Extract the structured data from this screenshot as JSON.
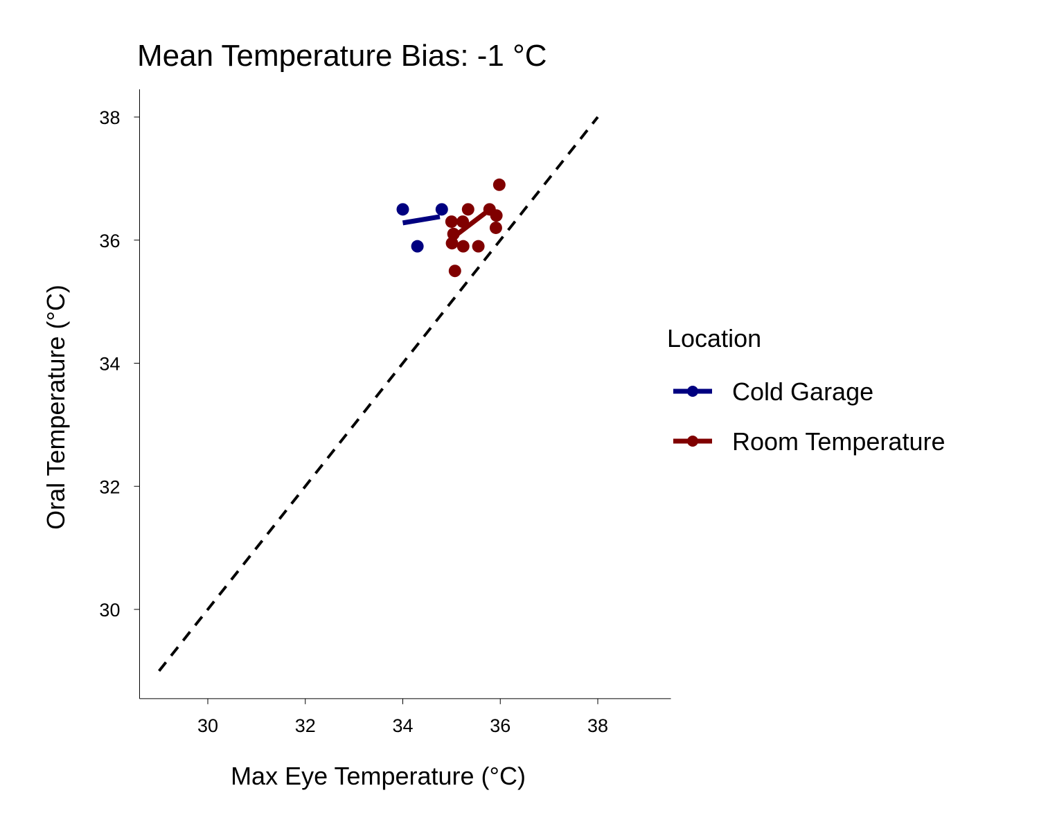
{
  "chart_data": {
    "type": "scatter",
    "title": "Mean Temperature Bias: -1 °C",
    "xlabel": "Max Eye Temperature (°C)",
    "ylabel": "Oral Temperature (°C)",
    "xlim": [
      28.6,
      39.5
    ],
    "ylim": [
      28.55,
      38.45
    ],
    "xticks": [
      "30",
      "32",
      "34",
      "36",
      "38"
    ],
    "yticks": [
      "30",
      "32",
      "34",
      "36",
      "38"
    ],
    "grid": false,
    "identity_line": {
      "from": [
        29,
        29
      ],
      "to": [
        38,
        38
      ],
      "style": "dashed",
      "color": "#000000"
    },
    "legend": {
      "title": "Location",
      "placement": "right"
    },
    "series": [
      {
        "name": "Cold Garage",
        "color": "#000080",
        "points": [
          [
            34.0,
            36.5
          ],
          [
            34.8,
            36.5
          ],
          [
            34.3,
            35.9
          ]
        ],
        "fit_line": [
          [
            34.0,
            36.28
          ],
          [
            34.76,
            36.38
          ]
        ]
      },
      {
        "name": "Room Temperature",
        "color": "#800000",
        "points": [
          [
            35.98,
            36.9
          ],
          [
            35.34,
            36.5
          ],
          [
            35.78,
            36.5
          ],
          [
            35.0,
            36.3
          ],
          [
            35.23,
            36.3
          ],
          [
            35.92,
            36.4
          ],
          [
            35.91,
            36.2
          ],
          [
            35.04,
            36.1
          ],
          [
            35.01,
            35.95
          ],
          [
            35.24,
            35.9
          ],
          [
            35.55,
            35.9
          ],
          [
            35.07,
            35.5
          ]
        ],
        "fit_line": [
          [
            35.04,
            36.05
          ],
          [
            35.84,
            36.53
          ]
        ]
      }
    ]
  }
}
